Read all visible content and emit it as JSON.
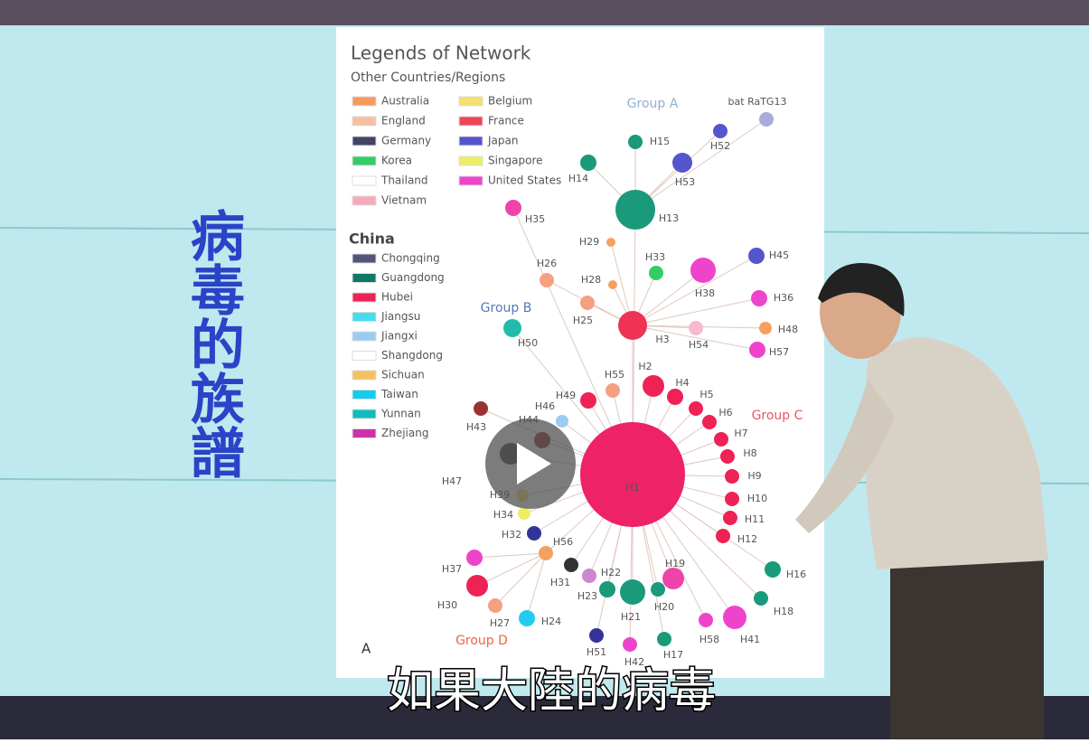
{
  "side_title": "病毒的族譜",
  "subtitle": "如果大陸的病毒",
  "network": {
    "title": "Legends of Network",
    "other_heading": "Other Countries/Regions",
    "other_legend": [
      {
        "label": "Australia",
        "color": "#f59a60"
      },
      {
        "label": "Belgium",
        "color": "#f5e070"
      },
      {
        "label": "England",
        "color": "#f5c0a0"
      },
      {
        "label": "France",
        "color": "#ee4455"
      },
      {
        "label": "Germany",
        "color": "#444466"
      },
      {
        "label": "Japan",
        "color": "#5555cc"
      },
      {
        "label": "Korea",
        "color": "#33cc66"
      },
      {
        "label": "Singapore",
        "color": "#eeee66"
      },
      {
        "label": "Thailand",
        "color": "#ffffff"
      },
      {
        "label": "United States",
        "color": "#ee44cc"
      },
      {
        "label": "Vietnam",
        "color": "#f5aabb"
      }
    ],
    "china_heading": "China",
    "china_legend": [
      {
        "label": "Chongqing",
        "color": "#555577"
      },
      {
        "label": "Guangdong",
        "color": "#117766"
      },
      {
        "label": "Hubei",
        "color": "#ee2255"
      },
      {
        "label": "Jiangsu",
        "color": "#44ddee"
      },
      {
        "label": "Jiangxi",
        "color": "#99ccee"
      },
      {
        "label": "Shangdong",
        "color": "#ffffff"
      },
      {
        "label": "Sichuan",
        "color": "#f5c060"
      },
      {
        "label": "Taiwan",
        "color": "#11ccee"
      },
      {
        "label": "Yunnan",
        "color": "#11bbbb"
      },
      {
        "label": "Zhejiang",
        "color": "#cc33aa"
      }
    ],
    "groups": [
      "Group A",
      "Group B",
      "Group C",
      "Group D"
    ],
    "corner_label": "A",
    "nodes": [
      "H1",
      "H13",
      "H15",
      "H52",
      "H14",
      "H53",
      "bat RaTG13",
      "H35",
      "H29",
      "H45",
      "H26",
      "H33",
      "H28",
      "H38",
      "H36",
      "H25",
      "H3",
      "H50",
      "H54",
      "H48",
      "H57",
      "H55",
      "H2",
      "H4",
      "H49",
      "H5",
      "H46",
      "H6",
      "H43",
      "H44",
      "H7",
      "H8",
      "H47",
      "H9",
      "H39",
      "H10",
      "H34",
      "H11",
      "H32",
      "H56",
      "H12",
      "H37",
      "H31",
      "H22",
      "H19",
      "H16",
      "H23",
      "H20",
      "H30",
      "H21",
      "H18",
      "H27",
      "H24",
      "H58",
      "H41",
      "H51",
      "H42",
      "H17"
    ]
  }
}
